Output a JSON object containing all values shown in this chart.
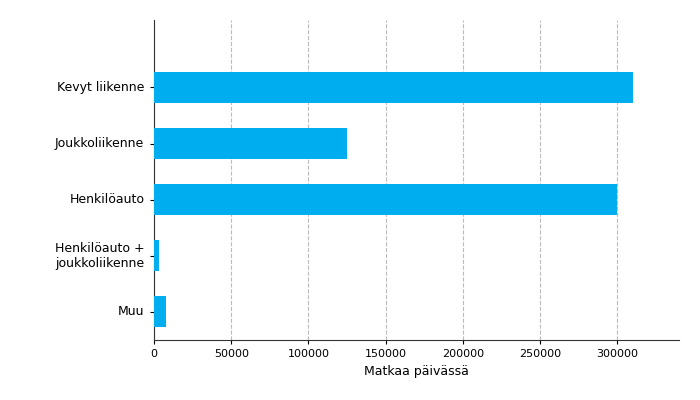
{
  "categories": [
    "Kevyt liikenne",
    "Joukkoliikenne",
    "Henkilöauto",
    "Henkilöauto +\njoukkoliikenne",
    "Muu"
  ],
  "values": [
    310000,
    125000,
    300000,
    3000,
    8000
  ],
  "bar_color": "#00AEEF",
  "xlabel": "Matkaa päivässä",
  "xlim": [
    0,
    340000
  ],
  "xticks": [
    0,
    50000,
    100000,
    150000,
    200000,
    250000,
    300000
  ],
  "xtick_labels": [
    "0",
    "50000",
    "100000",
    "150000",
    "200000",
    "250000",
    "300000"
  ],
  "background_color": "#ffffff",
  "grid_color": "#bbbbbb",
  "bar_height": 0.55,
  "label_fontsize": 9,
  "xlabel_fontsize": 9
}
